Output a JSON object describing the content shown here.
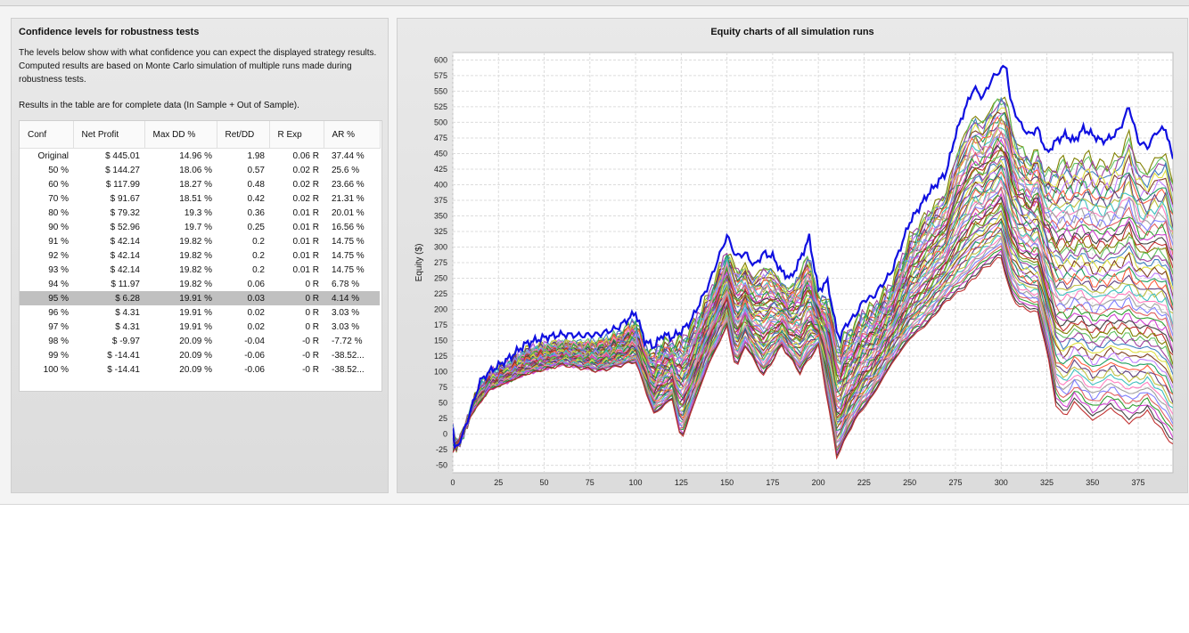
{
  "left_panel": {
    "title": "Confidence levels for robustness tests",
    "description": "The levels below show with what confidence you can expect the displayed strategy results. Computed results are based on Monte Carlo simulation of multiple runs made during robustness tests.",
    "note": "Results in the table are for complete data (In Sample + Out of Sample).",
    "table": {
      "columns": [
        "Conf",
        "Net Profit",
        "Max DD %",
        "Ret/DD",
        "R Exp",
        "AR %"
      ],
      "rows": [
        [
          "Original",
          "$ 445.01",
          "14.96 %",
          "1.98",
          "0.06 R",
          "37.44 %"
        ],
        [
          "50 %",
          "$ 144.27",
          "18.06 %",
          "0.57",
          "0.02 R",
          "25.6 %"
        ],
        [
          "60 %",
          "$ 117.99",
          "18.27 %",
          "0.48",
          "0.02 R",
          "23.66 %"
        ],
        [
          "70 %",
          "$ 91.67",
          "18.51 %",
          "0.42",
          "0.02 R",
          "21.31 %"
        ],
        [
          "80 %",
          "$ 79.32",
          "19.3 %",
          "0.36",
          "0.01 R",
          "20.01 %"
        ],
        [
          "90 %",
          "$ 52.96",
          "19.7 %",
          "0.25",
          "0.01 R",
          "16.56 %"
        ],
        [
          "91 %",
          "$ 42.14",
          "19.82 %",
          "0.2",
          "0.01 R",
          "14.75 %"
        ],
        [
          "92 %",
          "$ 42.14",
          "19.82 %",
          "0.2",
          "0.01 R",
          "14.75 %"
        ],
        [
          "93 %",
          "$ 42.14",
          "19.82 %",
          "0.2",
          "0.01 R",
          "14.75 %"
        ],
        [
          "94 %",
          "$ 11.97",
          "19.82 %",
          "0.06",
          "0 R",
          "6.78 %"
        ],
        [
          "95 %",
          "$ 6.28",
          "19.91 %",
          "0.03",
          "0 R",
          "4.14 %"
        ],
        [
          "96 %",
          "$ 4.31",
          "19.91 %",
          "0.02",
          "0 R",
          "3.03 %"
        ],
        [
          "97 %",
          "$ 4.31",
          "19.91 %",
          "0.02",
          "0 R",
          "3.03 %"
        ],
        [
          "98 %",
          "$ -9.97",
          "20.09 %",
          "-0.04",
          "-0 R",
          "-7.72 %"
        ],
        [
          "99 %",
          "$ -14.41",
          "20.09 %",
          "-0.06",
          "-0 R",
          "-38.52..."
        ],
        [
          "100 %",
          "$ -14.41",
          "20.09 %",
          "-0.06",
          "-0 R",
          "-38.52..."
        ]
      ],
      "selected_row": 10
    }
  },
  "right_panel": {
    "title": "Equity charts of all simulation runs"
  },
  "chart_data": {
    "type": "line",
    "title": "Equity charts of all simulation runs",
    "xlabel": "",
    "ylabel": "Equity ($)",
    "xlim": [
      0,
      394
    ],
    "ylim": [
      -62,
      612
    ],
    "x_ticks": [
      0,
      25,
      50,
      75,
      100,
      125,
      150,
      175,
      200,
      225,
      250,
      275,
      300,
      325,
      350,
      375
    ],
    "y_ticks": [
      -50,
      -25,
      0,
      25,
      50,
      75,
      100,
      125,
      150,
      175,
      200,
      225,
      250,
      275,
      300,
      325,
      350,
      375,
      400,
      425,
      450,
      475,
      500,
      525,
      550,
      575,
      600
    ],
    "grid": true,
    "original_color": "#1010e0",
    "series_count": 60,
    "series_colors": [
      "#808000",
      "#c03030",
      "#404040",
      "#d040d0",
      "#30a030",
      "#e06060",
      "#8080ff",
      "#a0a0a0",
      "#ff80c0",
      "#40c0c0",
      "#c0c040",
      "#604080",
      "#ff6040",
      "#20a060",
      "#c080ff",
      "#804020",
      "#e0e040",
      "#4080c0",
      "#a040a0",
      "#60c060"
    ],
    "series": [
      {
        "name": "Original",
        "points": [
          [
            0,
            10
          ],
          [
            1,
            -25
          ],
          [
            5,
            -5
          ],
          [
            10,
            40
          ],
          [
            15,
            85
          ],
          [
            20,
            100
          ],
          [
            30,
            120
          ],
          [
            40,
            145
          ],
          [
            50,
            155
          ],
          [
            60,
            160
          ],
          [
            70,
            158
          ],
          [
            80,
            160
          ],
          [
            90,
            170
          ],
          [
            100,
            195
          ],
          [
            105,
            150
          ],
          [
            110,
            140
          ],
          [
            115,
            160
          ],
          [
            120,
            155
          ],
          [
            125,
            165
          ],
          [
            130,
            180
          ],
          [
            140,
            240
          ],
          [
            145,
            280
          ],
          [
            150,
            318
          ],
          [
            155,
            285
          ],
          [
            160,
            290
          ],
          [
            165,
            270
          ],
          [
            170,
            290
          ],
          [
            175,
            285
          ],
          [
            180,
            260
          ],
          [
            185,
            250
          ],
          [
            190,
            280
          ],
          [
            195,
            315
          ],
          [
            200,
            230
          ],
          [
            205,
            245
          ],
          [
            210,
            165
          ],
          [
            212,
            155
          ],
          [
            215,
            175
          ],
          [
            220,
            190
          ],
          [
            225,
            215
          ],
          [
            230,
            220
          ],
          [
            240,
            260
          ],
          [
            250,
            340
          ],
          [
            260,
            385
          ],
          [
            270,
            420
          ],
          [
            275,
            480
          ],
          [
            280,
            520
          ],
          [
            285,
            555
          ],
          [
            290,
            540
          ],
          [
            295,
            570
          ],
          [
            300,
            585
          ],
          [
            303,
            590
          ],
          [
            305,
            535
          ],
          [
            310,
            500
          ],
          [
            315,
            480
          ],
          [
            320,
            490
          ],
          [
            325,
            450
          ],
          [
            330,
            470
          ],
          [
            335,
            480
          ],
          [
            340,
            470
          ],
          [
            345,
            490
          ],
          [
            350,
            480
          ],
          [
            355,
            470
          ],
          [
            360,
            475
          ],
          [
            365,
            490
          ],
          [
            370,
            525
          ],
          [
            375,
            470
          ],
          [
            380,
            460
          ],
          [
            385,
            485
          ],
          [
            390,
            490
          ],
          [
            394,
            440
          ]
        ]
      },
      {
        "name": "",
        "points": [
          [
            0,
            -30
          ],
          [
            10,
            30
          ],
          [
            20,
            70
          ],
          [
            40,
            95
          ],
          [
            60,
            110
          ],
          [
            80,
            100
          ],
          [
            100,
            115
          ],
          [
            110,
            30
          ],
          [
            120,
            55
          ],
          [
            125,
            -15
          ],
          [
            130,
            30
          ],
          [
            140,
            110
          ],
          [
            150,
            170
          ],
          [
            155,
            100
          ],
          [
            160,
            140
          ],
          [
            170,
            90
          ],
          [
            180,
            140
          ],
          [
            190,
            95
          ],
          [
            200,
            140
          ],
          [
            210,
            -40
          ],
          [
            220,
            20
          ],
          [
            230,
            60
          ],
          [
            240,
            110
          ],
          [
            250,
            150
          ],
          [
            260,
            175
          ],
          [
            270,
            210
          ],
          [
            280,
            230
          ],
          [
            290,
            260
          ],
          [
            300,
            280
          ],
          [
            305,
            220
          ],
          [
            310,
            200
          ],
          [
            320,
            190
          ],
          [
            325,
            130
          ],
          [
            330,
            40
          ],
          [
            335,
            20
          ],
          [
            340,
            45
          ],
          [
            350,
            15
          ],
          [
            360,
            35
          ],
          [
            370,
            10
          ],
          [
            380,
            30
          ],
          [
            394,
            -25
          ]
        ]
      }
    ]
  }
}
